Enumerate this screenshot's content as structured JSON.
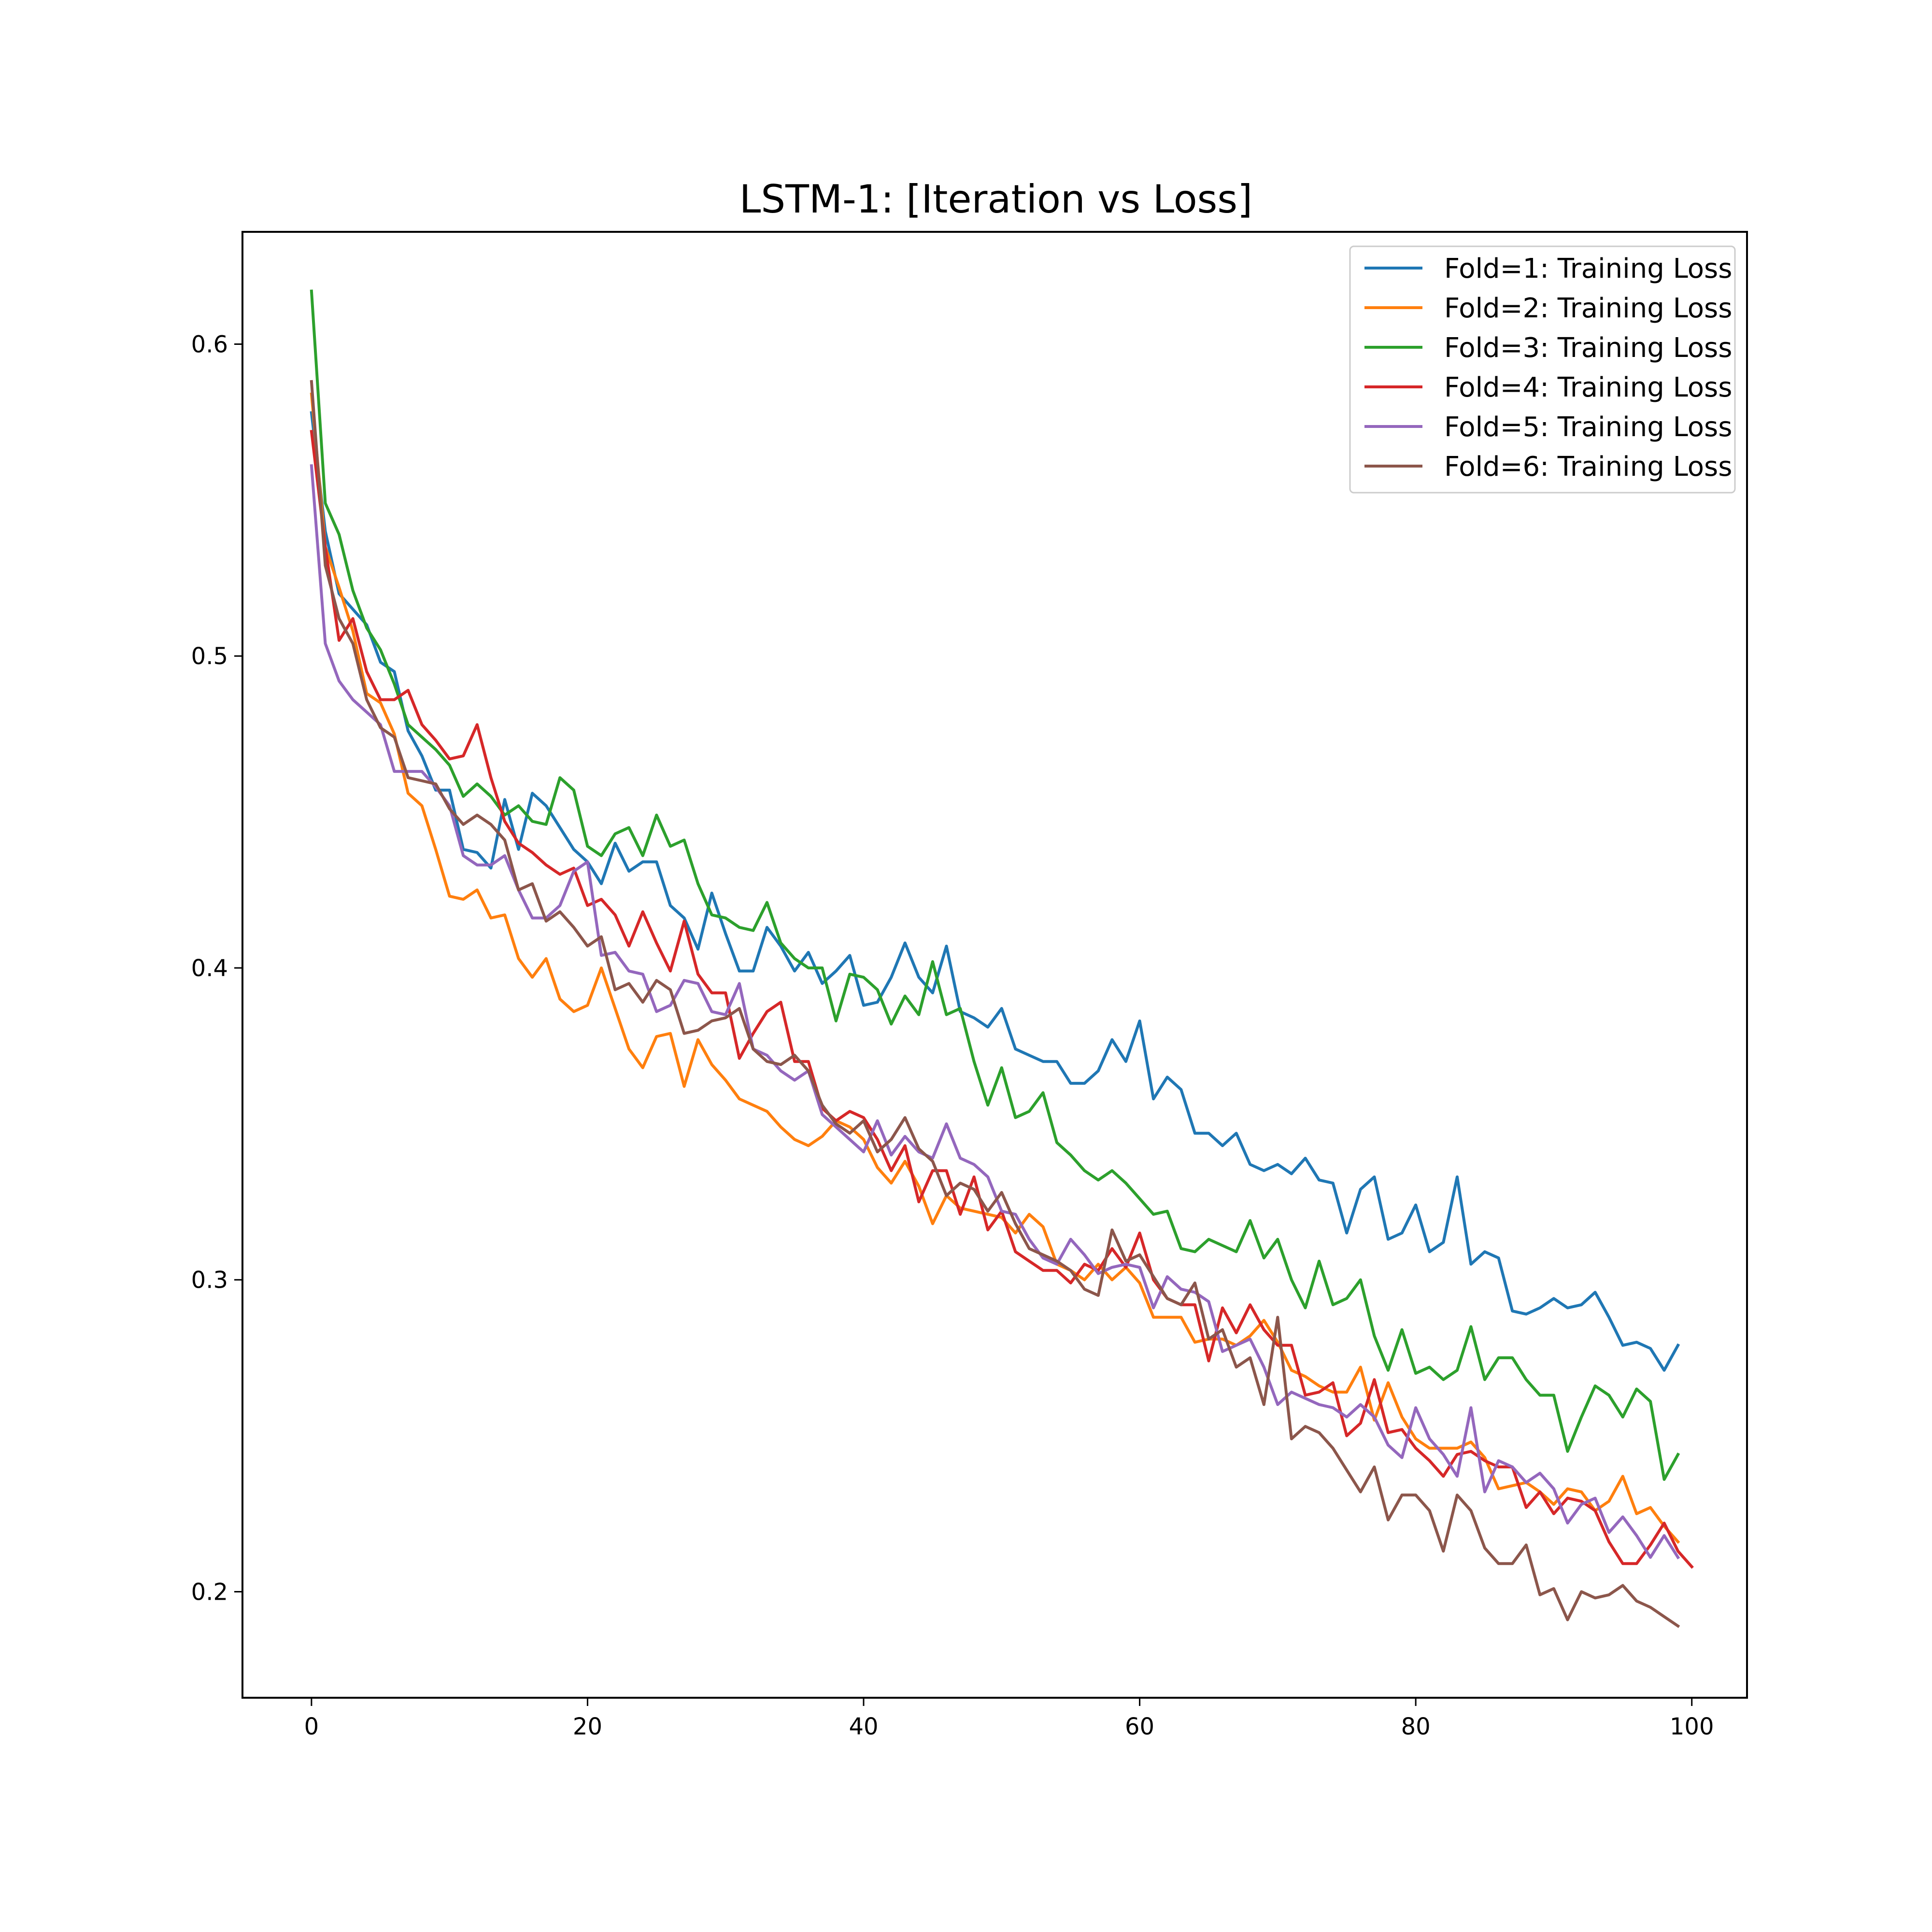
{
  "chart_data": {
    "type": "line",
    "title": "LSTM-1: [Iteration vs Loss]",
    "xlabel": "",
    "ylabel": "",
    "xlim": [
      -5,
      104
    ],
    "ylim": [
      0.166,
      0.636
    ],
    "x_ticks": [
      0,
      20,
      40,
      60,
      80,
      100
    ],
    "y_ticks": [
      0.2,
      0.3,
      0.4,
      0.5,
      0.6
    ],
    "x_tick_labels": [
      "0",
      "20",
      "40",
      "60",
      "80",
      "100"
    ],
    "y_tick_labels": [
      "0.2",
      "0.3",
      "0.4",
      "0.5",
      "0.6"
    ],
    "grid": false,
    "legend_position": "top-right",
    "x_start": 0,
    "x_step": 1,
    "series": [
      {
        "name": "Fold=1: Training Loss",
        "color": "#1f77b4",
        "values": [
          0.578,
          0.54,
          0.52,
          0.515,
          0.51,
          0.498,
          0.495,
          0.476,
          0.468,
          0.457,
          0.457,
          0.438,
          0.437,
          0.432,
          0.454,
          0.438,
          0.456,
          0.452,
          0.445,
          0.438,
          0.434,
          0.427,
          0.44,
          0.431,
          0.434,
          0.434,
          0.42,
          0.416,
          0.406,
          0.424,
          0.411,
          0.399,
          0.399,
          0.413,
          0.407,
          0.399,
          0.405,
          0.395,
          0.399,
          0.404,
          0.388,
          0.389,
          0.397,
          0.408,
          0.397,
          0.392,
          0.407,
          0.386,
          0.384,
          0.381,
          0.387,
          0.374,
          0.372,
          0.37,
          0.37,
          0.363,
          0.363,
          0.367,
          0.377,
          0.37,
          0.383,
          0.358,
          0.365,
          0.361,
          0.347,
          0.347,
          0.343,
          0.347,
          0.337,
          0.335,
          0.337,
          0.334,
          0.339,
          0.332,
          0.331,
          0.315,
          0.329,
          0.333,
          0.313,
          0.315,
          0.324,
          0.309,
          0.312,
          0.333,
          0.305,
          0.309,
          0.307,
          0.29,
          0.289,
          0.291,
          0.294,
          0.291,
          0.292,
          0.296,
          0.288,
          0.279,
          0.28,
          0.278,
          0.271,
          0.279
        ]
      },
      {
        "name": "Fold=2: Training Loss",
        "color": "#ff7f0e",
        "values": [
          0.584,
          0.535,
          0.522,
          0.508,
          0.488,
          0.485,
          0.475,
          0.456,
          0.452,
          0.438,
          0.423,
          0.422,
          0.425,
          0.416,
          0.417,
          0.403,
          0.397,
          0.403,
          0.39,
          0.386,
          0.388,
          0.4,
          0.387,
          0.374,
          0.368,
          0.378,
          0.379,
          0.362,
          0.377,
          0.369,
          0.364,
          0.358,
          0.356,
          0.354,
          0.349,
          0.345,
          0.343,
          0.346,
          0.351,
          0.349,
          0.345,
          0.336,
          0.331,
          0.338,
          0.33,
          0.318,
          0.327,
          0.323,
          0.322,
          0.321,
          0.32,
          0.315,
          0.321,
          0.317,
          0.305,
          0.303,
          0.3,
          0.305,
          0.3,
          0.304,
          0.299,
          0.288,
          0.288,
          0.288,
          0.28,
          0.281,
          0.281,
          0.279,
          0.282,
          0.287,
          0.28,
          0.271,
          0.269,
          0.266,
          0.264,
          0.264,
          0.272,
          0.255,
          0.267,
          0.256,
          0.249,
          0.246,
          0.246,
          0.246,
          0.248,
          0.243,
          0.233,
          0.234,
          0.235,
          0.232,
          0.228,
          0.233,
          0.232,
          0.226,
          0.229,
          0.237,
          0.225,
          0.227,
          0.221,
          0.216
        ]
      },
      {
        "name": "Fold=3: Training Loss",
        "color": "#2ca02c",
        "values": [
          0.617,
          0.549,
          0.539,
          0.521,
          0.509,
          0.502,
          0.491,
          0.478,
          0.474,
          0.47,
          0.465,
          0.455,
          0.459,
          0.455,
          0.449,
          0.452,
          0.447,
          0.446,
          0.461,
          0.457,
          0.439,
          0.436,
          0.443,
          0.445,
          0.436,
          0.449,
          0.439,
          0.441,
          0.427,
          0.417,
          0.416,
          0.413,
          0.412,
          0.421,
          0.408,
          0.403,
          0.4,
          0.4,
          0.383,
          0.398,
          0.397,
          0.393,
          0.382,
          0.391,
          0.385,
          0.402,
          0.385,
          0.387,
          0.37,
          0.356,
          0.368,
          0.352,
          0.354,
          0.36,
          0.344,
          0.34,
          0.335,
          0.332,
          0.335,
          0.331,
          0.326,
          0.321,
          0.322,
          0.31,
          0.309,
          0.313,
          0.311,
          0.309,
          0.319,
          0.307,
          0.313,
          0.3,
          0.291,
          0.306,
          0.292,
          0.294,
          0.3,
          0.282,
          0.271,
          0.284,
          0.27,
          0.272,
          0.268,
          0.271,
          0.285,
          0.268,
          0.275,
          0.275,
          0.268,
          0.263,
          0.263,
          0.245,
          0.256,
          0.266,
          0.263,
          0.256,
          0.265,
          0.261,
          0.236,
          0.244
        ]
      },
      {
        "name": "Fold=4: Training Loss",
        "color": "#d62728",
        "values": [
          0.572,
          0.535,
          0.505,
          0.512,
          0.495,
          0.486,
          0.486,
          0.489,
          0.478,
          0.473,
          0.467,
          0.468,
          0.478,
          0.461,
          0.447,
          0.44,
          0.437,
          0.433,
          0.43,
          0.432,
          0.42,
          0.422,
          0.417,
          0.407,
          0.418,
          0.408,
          0.399,
          0.415,
          0.398,
          0.392,
          0.392,
          0.371,
          0.379,
          0.386,
          0.389,
          0.37,
          0.37,
          0.355,
          0.351,
          0.354,
          0.352,
          0.345,
          0.335,
          0.343,
          0.325,
          0.335,
          0.335,
          0.321,
          0.333,
          0.316,
          0.322,
          0.309,
          0.306,
          0.303,
          0.303,
          0.299,
          0.305,
          0.303,
          0.31,
          0.304,
          0.315,
          0.3,
          0.294,
          0.292,
          0.292,
          0.274,
          0.291,
          0.283,
          0.292,
          0.284,
          0.279,
          0.279,
          0.263,
          0.264,
          0.267,
          0.25,
          0.254,
          0.268,
          0.251,
          0.252,
          0.246,
          0.242,
          0.237,
          0.244,
          0.245,
          0.242,
          0.24,
          0.24,
          0.227,
          0.232,
          0.225,
          0.23,
          0.229,
          0.226,
          0.216,
          0.209,
          0.209,
          0.215,
          0.222,
          0.213,
          0.208
        ]
      },
      {
        "name": "Fold=5: Training Loss",
        "color": "#9467bd",
        "values": [
          0.561,
          0.504,
          0.492,
          0.486,
          0.482,
          0.478,
          0.463,
          0.463,
          0.463,
          0.458,
          0.452,
          0.436,
          0.433,
          0.433,
          0.436,
          0.425,
          0.416,
          0.416,
          0.42,
          0.431,
          0.434,
          0.404,
          0.405,
          0.399,
          0.398,
          0.386,
          0.388,
          0.396,
          0.395,
          0.386,
          0.385,
          0.395,
          0.374,
          0.372,
          0.367,
          0.364,
          0.367,
          0.353,
          0.349,
          0.345,
          0.341,
          0.351,
          0.34,
          0.346,
          0.341,
          0.339,
          0.35,
          0.339,
          0.337,
          0.333,
          0.322,
          0.321,
          0.313,
          0.307,
          0.305,
          0.313,
          0.308,
          0.302,
          0.304,
          0.305,
          0.304,
          0.291,
          0.301,
          0.297,
          0.296,
          0.293,
          0.277,
          0.279,
          0.281,
          0.272,
          0.26,
          0.264,
          0.262,
          0.26,
          0.259,
          0.256,
          0.26,
          0.256,
          0.247,
          0.243,
          0.259,
          0.249,
          0.244,
          0.237,
          0.259,
          0.232,
          0.242,
          0.24,
          0.235,
          0.238,
          0.233,
          0.222,
          0.228,
          0.23,
          0.219,
          0.224,
          0.218,
          0.211,
          0.218,
          0.211
        ]
      },
      {
        "name": "Fold=6: Training Loss",
        "color": "#8c564b",
        "values": [
          0.588,
          0.529,
          0.512,
          0.504,
          0.486,
          0.477,
          0.474,
          0.461,
          0.46,
          0.459,
          0.451,
          0.446,
          0.449,
          0.446,
          0.441,
          0.425,
          0.427,
          0.415,
          0.418,
          0.413,
          0.407,
          0.41,
          0.393,
          0.395,
          0.389,
          0.396,
          0.393,
          0.379,
          0.38,
          0.383,
          0.384,
          0.387,
          0.374,
          0.37,
          0.369,
          0.372,
          0.367,
          0.356,
          0.35,
          0.347,
          0.351,
          0.341,
          0.345,
          0.352,
          0.342,
          0.338,
          0.327,
          0.331,
          0.329,
          0.322,
          0.328,
          0.318,
          0.31,
          0.308,
          0.306,
          0.303,
          0.297,
          0.295,
          0.316,
          0.306,
          0.308,
          0.301,
          0.294,
          0.292,
          0.299,
          0.281,
          0.284,
          0.272,
          0.275,
          0.26,
          0.288,
          0.249,
          0.253,
          0.251,
          0.246,
          0.239,
          0.232,
          0.24,
          0.223,
          0.231,
          0.231,
          0.226,
          0.213,
          0.231,
          0.226,
          0.214,
          0.209,
          0.209,
          0.215,
          0.199,
          0.201,
          0.191,
          0.2,
          0.198,
          0.199,
          0.202,
          0.197,
          0.195,
          0.192,
          0.189
        ]
      }
    ]
  }
}
